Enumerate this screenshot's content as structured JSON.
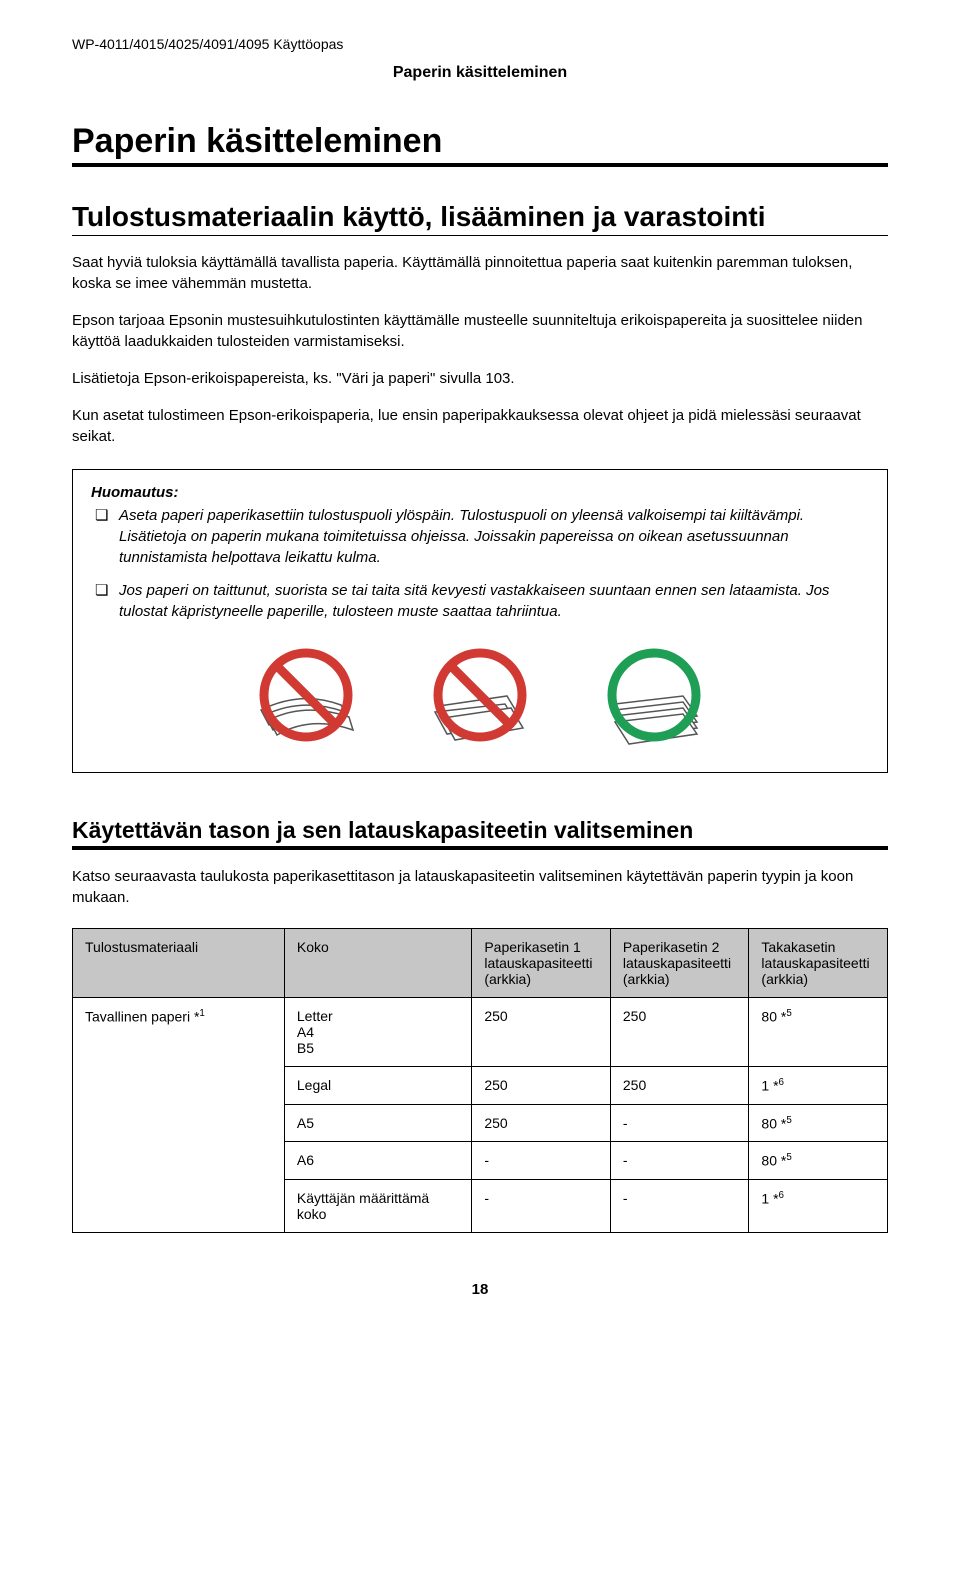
{
  "header": {
    "model_line": "WP-4011/4015/4025/4091/4095     Käyttöopas",
    "section": "Paperin käsitteleminen"
  },
  "h1": "Paperin käsitteleminen",
  "h2": "Tulostusmateriaalin käyttö, lisääminen ja varastointi",
  "body": {
    "p1": "Saat hyviä tuloksia käyttämällä tavallista paperia. Käyttämällä pinnoitettua paperia saat kuitenkin paremman tuloksen, koska se imee vähemmän mustetta.",
    "p2": "Epson tarjoaa Epsonin mustesuihkutulostinten käyttämälle musteelle suunniteltuja erikoispapereita ja suosittelee niiden käyttöä laadukkaiden tulosteiden varmistamiseksi.",
    "p3": "Lisätietoja Epson-erikoispapereista, ks. \"Väri ja paperi\" sivulla 103.",
    "p4": "Kun asetat tulostimeen Epson-erikoispaperia, lue ensin paperipakkauksessa olevat ohjeet ja pidä mielessäsi seuraavat seikat."
  },
  "notice": {
    "title": "Huomautus:",
    "item1": "Aseta paperi paperikasettiin tulostuspuoli ylöspäin. Tulostuspuoli on yleensä valkoisempi tai kiiltävämpi. Lisätietoja on paperin mukana toimitetuissa ohjeissa. Joissakin papereissa on oikean asetussuunnan tunnistamista helpottava leikattu kulma.",
    "item2": "Jos paperi on taittunut, suorista se tai taita sitä kevyesti vastakkaiseen suuntaan ennen sen lataamista. Jos tulostat käpristyneelle paperille, tulosteen muste saattaa tahriintua."
  },
  "icons": {
    "prohibit_color": "#d13a32",
    "ok_color": "#1f9e55",
    "paper_fill": "#ffffff",
    "paper_stroke": "#4a4a4a"
  },
  "h3": "Käytettävän tason ja sen latauskapasiteetin valitseminen",
  "subp": "Katso seuraavasta taulukosta paperikasettitason ja latauskapasiteetin valitseminen käytettävän paperin tyypin ja koon mukaan.",
  "table": {
    "headers": {
      "c1": "Tulostusmateriaali",
      "c2": "Koko",
      "c3": "Paperikasetin 1 latauskapasiteetti (arkkia)",
      "c4": "Paperikasetin 2 latauskapasiteetti (arkkia)",
      "c5": "Takakasetin latauskapasiteetti (arkkia)"
    },
    "material": "Tavallinen paperi *",
    "material_sup": "1",
    "rows": [
      {
        "size_lines": [
          "Letter",
          "A4",
          "B5"
        ],
        "c3": "250",
        "c4": "250",
        "c5": "80 *",
        "c5_sup": "5"
      },
      {
        "size_lines": [
          "Legal"
        ],
        "c3": "250",
        "c4": "250",
        "c5": "1 *",
        "c5_sup": "6"
      },
      {
        "size_lines": [
          "A5"
        ],
        "c3": "250",
        "c4": "-",
        "c5": "80 *",
        "c5_sup": "5"
      },
      {
        "size_lines": [
          "A6"
        ],
        "c3": "-",
        "c4": "-",
        "c5": "80 *",
        "c5_sup": "5"
      },
      {
        "size_lines": [
          "Käyttäjän määrittämä koko"
        ],
        "c3": "-",
        "c4": "-",
        "c5": "1 *",
        "c5_sup": "6"
      }
    ]
  },
  "page_number": "18"
}
